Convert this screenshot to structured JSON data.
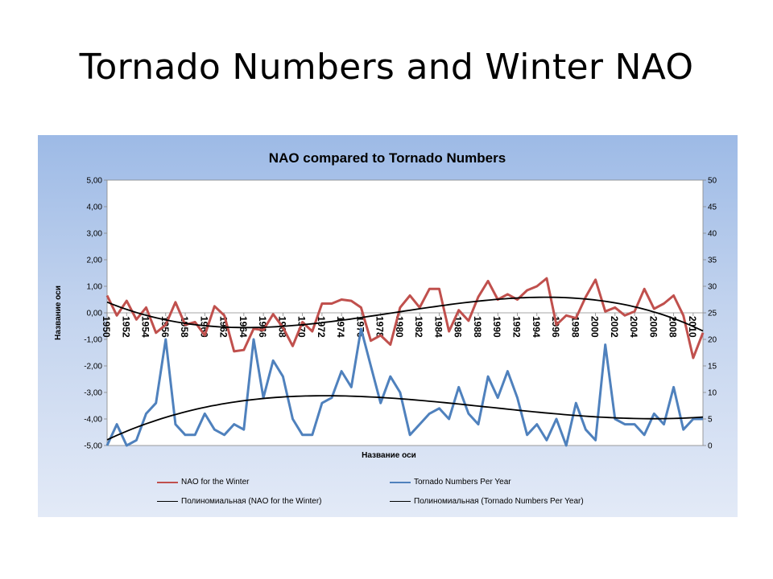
{
  "slide": {
    "title": "Tornado Numbers and Winter NAO"
  },
  "colors": {
    "nao": "#c0504d",
    "tornado": "#4f81bd",
    "trend": "#000000"
  },
  "chart_data": {
    "type": "line",
    "title": "NAO compared to Tornado Numbers",
    "xlabel": "Название оси",
    "ylabel": "Название оси",
    "x": [
      1950,
      1951,
      1952,
      1953,
      1954,
      1955,
      1956,
      1957,
      1958,
      1959,
      1960,
      1961,
      1962,
      1963,
      1964,
      1965,
      1966,
      1967,
      1968,
      1969,
      1970,
      1971,
      1972,
      1973,
      1974,
      1975,
      1976,
      1977,
      1978,
      1979,
      1980,
      1981,
      1982,
      1983,
      1984,
      1985,
      1986,
      1987,
      1988,
      1989,
      1990,
      1991,
      1992,
      1993,
      1994,
      1995,
      1996,
      1997,
      1998,
      1999,
      2000,
      2001,
      2002,
      2003,
      2004,
      2005,
      2006,
      2007,
      2008,
      2009,
      2010,
      2011
    ],
    "x_tick_labels": [
      "1950",
      "1952",
      "1954",
      "1956",
      "1958",
      "1960",
      "1962",
      "1964",
      "1966",
      "1968",
      "1970",
      "1972",
      "1974",
      "1976",
      "1978",
      "1980",
      "1982",
      "1984",
      "1986",
      "1988",
      "1990",
      "1992",
      "1994",
      "1996",
      "1998",
      "2000",
      "2002",
      "2004",
      "2006",
      "2008",
      "2010"
    ],
    "y_left": {
      "min": -5,
      "max": 5,
      "step": 1,
      "tick_labels": [
        "-5,00",
        "-4,00",
        "-3,00",
        "-2,00",
        "-1,00",
        "0,00",
        "1,00",
        "2,00",
        "3,00",
        "4,00",
        "5,00"
      ]
    },
    "y_right": {
      "min": 0,
      "max": 50,
      "step": 5,
      "tick_labels": [
        "0",
        "5",
        "10",
        "15",
        "20",
        "25",
        "30",
        "35",
        "40",
        "45",
        "50"
      ]
    },
    "grid": false,
    "legend_position": "bottom",
    "series": [
      {
        "name": "NAO for the Winter",
        "axis": "left",
        "color": "#c0504d",
        "values": [
          0.65,
          -0.1,
          0.45,
          -0.25,
          0.2,
          -0.75,
          -0.45,
          0.4,
          -0.45,
          -0.35,
          -0.85,
          0.25,
          -0.1,
          -1.45,
          -1.4,
          -0.6,
          -0.65,
          -0.05,
          -0.55,
          -1.25,
          -0.35,
          -0.7,
          0.35,
          0.35,
          0.5,
          0.45,
          0.2,
          -1.05,
          -0.85,
          -1.2,
          0.2,
          0.65,
          0.2,
          0.9,
          0.9,
          -0.7,
          0.1,
          -0.3,
          0.6,
          1.2,
          0.5,
          0.7,
          0.5,
          0.85,
          1.0,
          1.3,
          -0.45,
          -0.1,
          -0.2,
          0.6,
          1.25,
          0.05,
          0.2,
          -0.1,
          0.05,
          0.9,
          0.15,
          0.35,
          0.65,
          -0.1,
          -1.7,
          -0.75
        ]
      },
      {
        "name": "Tornado Numbers Per Year",
        "axis": "right",
        "color": "#4f81bd",
        "values": [
          0,
          4,
          0,
          1,
          6,
          8,
          20,
          4,
          2,
          2,
          6,
          3,
          2,
          4,
          3,
          20,
          9,
          16,
          13,
          5,
          2,
          2,
          8,
          9,
          14,
          11,
          22,
          15,
          8,
          13,
          10,
          2,
          4,
          6,
          7,
          5,
          11,
          6,
          4,
          13,
          9,
          14,
          9,
          2,
          4,
          1,
          5,
          0,
          8,
          3,
          1,
          19,
          5,
          4,
          4,
          2,
          6,
          4,
          11,
          3,
          5,
          5
        ]
      },
      {
        "name": "Полиномиальная (NAO for the Winter)",
        "axis": "left",
        "color": "#000000",
        "trend_of": 0
      },
      {
        "name": "Полиномиальная (Tornado Numbers Per Year)",
        "axis": "right",
        "color": "#000000",
        "trend_of": 1
      }
    ]
  }
}
